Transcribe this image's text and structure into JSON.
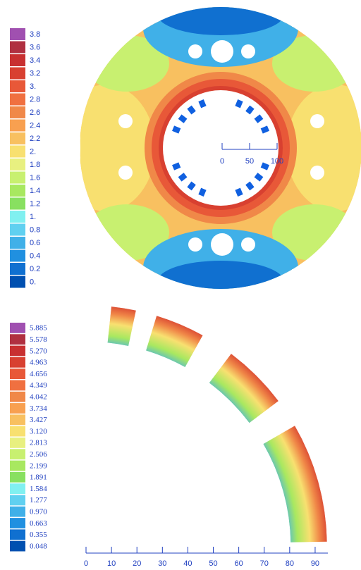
{
  "chart_data": [
    {
      "type": "contour",
      "levels": [
        3.8,
        3.6,
        3.4,
        3.2,
        {
          "value": 3,
          "label": "3."
        },
        2.8,
        2.6,
        2.4,
        2.2,
        {
          "value": 2,
          "label": "2."
        },
        1.8,
        1.6,
        1.4,
        1.2,
        {
          "value": 1,
          "label": "1."
        },
        0.8,
        0.6,
        0.4,
        0.2,
        {
          "value": 0,
          "label": "0."
        }
      ],
      "colors": [
        "#a050b0",
        "#b03040",
        "#c83030",
        "#d84030",
        "#e85838",
        "#f07040",
        "#f08848",
        "#f8a050",
        "#f8c060",
        "#f8e070",
        "#e8f080",
        "#c8f070",
        "#a8e860",
        "#88e060",
        "#80f0f0",
        "#60d0f0",
        "#40b0e8",
        "#2090e0",
        "#1070d0",
        "#0050b0"
      ],
      "xlim": [
        0,
        100
      ],
      "xticks": [
        0,
        50,
        100
      ]
    },
    {
      "type": "contour",
      "levels": [
        5.885,
        5.578,
        {
          "value": 5.27,
          "label": "5.270"
        },
        4.963,
        4.656,
        4.349,
        4.042,
        3.734,
        3.427,
        {
          "value": 3.12,
          "label": "3.120"
        },
        2.813,
        2.506,
        2.199,
        1.891,
        1.584,
        1.277,
        {
          "value": 0.97,
          "label": "0.970"
        },
        0.663,
        0.355,
        0.048
      ],
      "colors": [
        "#a050b0",
        "#b03040",
        "#c83030",
        "#d84030",
        "#e85838",
        "#f07040",
        "#f08848",
        "#f8a050",
        "#f8c060",
        "#f8e070",
        "#e8f080",
        "#c8f070",
        "#a8e860",
        "#88e060",
        "#80f0f0",
        "#60d0f0",
        "#40b0e8",
        "#2090e0",
        "#1070d0",
        "#0050b0"
      ],
      "xlim": [
        0,
        95
      ],
      "xticks": [
        0,
        10,
        20,
        30,
        40,
        50,
        60,
        70,
        80,
        90
      ]
    }
  ]
}
